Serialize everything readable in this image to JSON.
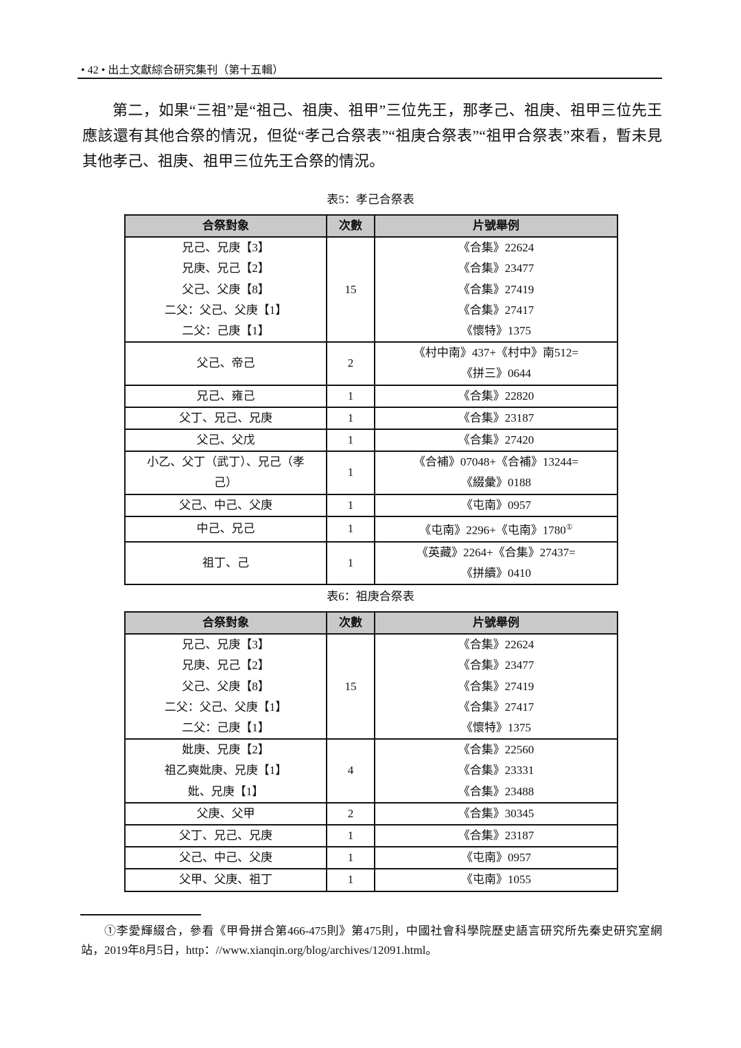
{
  "header": {
    "text": "• 42 • 出土文獻綜合研究集刊（第十五輯）"
  },
  "paragraph": "第二，如果“三祖”是“祖己、祖庚、祖甲”三位先王，那孝己、祖庚、祖甲三位先王應該還有其他合祭的情況，但從“孝己合祭表”“祖庚合祭表”“祖甲合祭表”來看，暫未見其他孝己、祖庚、祖甲三位先王合祭的情況。",
  "tables": [
    {
      "caption": "表5：孝己合祭表",
      "headers": [
        "合祭對象",
        "次數",
        "片號舉例"
      ],
      "rows": [
        {
          "objects": [
            "兄己、兄庚【3】",
            "兄庚、兄己【2】",
            "父己、父庚【8】",
            "二父：父己、父庚【1】",
            "二父：己庚【1】"
          ],
          "count": "15",
          "refs": [
            "《合集》22624",
            "《合集》23477",
            "《合集》27419",
            "《合集》27417",
            "《懷特》1375"
          ]
        },
        {
          "objects": [
            "父己、帝己"
          ],
          "count": "2",
          "refs": [
            "《村中南》437+《村中》南512=",
            "《拼三》0644"
          ]
        },
        {
          "objects": [
            "兄己、雍己"
          ],
          "count": "1",
          "refs": [
            "《合集》22820"
          ]
        },
        {
          "objects": [
            "父丁、兄己、兄庚"
          ],
          "count": "1",
          "refs": [
            "《合集》23187"
          ]
        },
        {
          "objects": [
            "父己、父戊"
          ],
          "count": "1",
          "refs": [
            "《合集》27420"
          ]
        },
        {
          "objects": [
            "小乙、父丁（武丁）、兄己（孝",
            "己）"
          ],
          "count": "1",
          "refs": [
            "《合補》07048+《合補》13244=",
            "《綴彙》0188"
          ]
        },
        {
          "objects": [
            "父己、中己、父庚"
          ],
          "count": "1",
          "refs": [
            "《屯南》0957"
          ]
        },
        {
          "objects": [
            "中己、兄己"
          ],
          "count": "1",
          "refs": [
            "《屯南》2296+《屯南》1780"
          ],
          "footnote_mark": "①"
        },
        {
          "objects": [
            "祖丁、己"
          ],
          "count": "1",
          "refs": [
            "《英藏》2264+《合集》27437=",
            "《拼續》0410"
          ]
        }
      ]
    },
    {
      "caption": "表6：祖庚合祭表",
      "headers": [
        "合祭對象",
        "次數",
        "片號舉例"
      ],
      "rows": [
        {
          "objects": [
            "兄己、兄庚【3】",
            "兄庚、兄己【2】",
            "父己、父庚【8】",
            "二父：父己、父庚【1】",
            "二父：己庚【1】"
          ],
          "count": "15",
          "refs": [
            "《合集》22624",
            "《合集》23477",
            "《合集》27419",
            "《合集》27417",
            "《懷特》1375"
          ]
        },
        {
          "objects": [
            "妣庚、兄庚【2】",
            "祖乙奭妣庚、兄庚【1】",
            "妣、兄庚【1】"
          ],
          "count": "4",
          "refs": [
            "《合集》22560",
            "《合集》23331",
            "《合集》23488"
          ]
        },
        {
          "objects": [
            "父庚、父甲"
          ],
          "count": "2",
          "refs": [
            "《合集》30345"
          ]
        },
        {
          "objects": [
            "父丁、兄己、兄庚"
          ],
          "count": "1",
          "refs": [
            "《合集》23187"
          ]
        },
        {
          "objects": [
            "父己、中己、父庚"
          ],
          "count": "1",
          "refs": [
            "《屯南》0957"
          ]
        },
        {
          "objects": [
            "父甲、父庚、祖丁"
          ],
          "count": "1",
          "refs": [
            "《屯南》1055"
          ]
        }
      ]
    }
  ],
  "footnote": "①李愛輝綴合，參看《甲骨拼合第466-475則》第475則，中國社會科學院歷史語言研究所先秦史研究室網站，2019年8月5日，http：//www.xianqin.org/blog/archives/12091.html。"
}
